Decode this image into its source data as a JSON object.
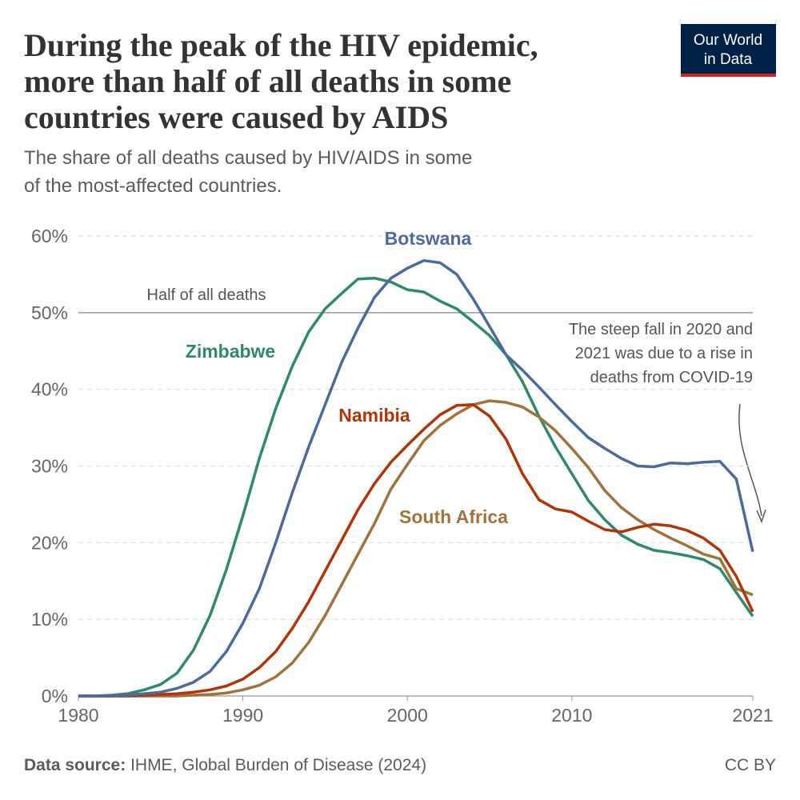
{
  "chart_data": {
    "type": "line",
    "title": [
      "During the peak of the HIV epidemic,",
      "more than half of all deaths in some",
      "countries were caused by AIDS"
    ],
    "subtitle": [
      "The share of all deaths caused by HIV/AIDS in some",
      "of the most-affected countries."
    ],
    "x": [
      1980,
      1981,
      1982,
      1983,
      1984,
      1985,
      1986,
      1987,
      1988,
      1989,
      1990,
      1991,
      1992,
      1993,
      1994,
      1995,
      1996,
      1997,
      1998,
      1999,
      2000,
      2001,
      2002,
      2003,
      2004,
      2005,
      2006,
      2007,
      2008,
      2009,
      2010,
      2011,
      2012,
      2013,
      2014,
      2015,
      2016,
      2017,
      2018,
      2019,
      2020,
      2021
    ],
    "xlim": [
      1980,
      2021
    ],
    "xticks": [
      1980,
      1990,
      2000,
      2010,
      2021
    ],
    "ylim": [
      0,
      60
    ],
    "yticks": [
      {
        "value": 0,
        "label": "0%"
      },
      {
        "value": 10,
        "label": "10%"
      },
      {
        "value": 20,
        "label": "20%"
      },
      {
        "value": 30,
        "label": "30%"
      },
      {
        "value": 40,
        "label": "40%"
      },
      {
        "value": 50,
        "label": "50%"
      },
      {
        "value": 60,
        "label": "60%"
      }
    ],
    "grid": true,
    "series": [
      {
        "name": "Botswana",
        "color": "#4c6a9c",
        "values": [
          0,
          0,
          0,
          0.1,
          0.3,
          0.5,
          1,
          1.8,
          3.2,
          5.8,
          9.5,
          14,
          20,
          26.5,
          32.5,
          38,
          43.5,
          48,
          52,
          54.5,
          55.8,
          56.8,
          56.5,
          55,
          51.8,
          48.2,
          44.5,
          42.5,
          40.3,
          38,
          35.8,
          33.7,
          32.3,
          31,
          30,
          29.9,
          30.4,
          30.3,
          30.5,
          30.6,
          28.3,
          18.8
        ]
      },
      {
        "name": "Zimbabwe",
        "color": "#2f8a6c",
        "values": [
          0,
          0,
          0.1,
          0.3,
          0.8,
          1.5,
          3,
          6,
          10.5,
          16.5,
          23.5,
          31,
          37.5,
          43,
          47.5,
          50.5,
          52.5,
          54.4,
          54.5,
          54,
          53,
          52.7,
          51.5,
          50.5,
          48.8,
          47,
          44.5,
          41,
          36.5,
          32.5,
          29,
          25.5,
          23,
          21,
          19.8,
          19,
          18.7,
          18.3,
          17.8,
          16.6,
          13.5,
          10.4
        ]
      },
      {
        "name": "Namibia",
        "color": "#b13507",
        "values": [
          0,
          0,
          0,
          0,
          0.1,
          0.2,
          0.3,
          0.5,
          0.8,
          1.3,
          2.2,
          3.7,
          5.8,
          8.8,
          12.3,
          16.3,
          20.3,
          24.3,
          27.7,
          30.5,
          32.7,
          34.8,
          36.7,
          37.9,
          38,
          36.5,
          33.5,
          29,
          25.6,
          24.4,
          24,
          22.8,
          21.7,
          21.4,
          22,
          22.4,
          22.2,
          21.6,
          20.6,
          19,
          15.6,
          11
        ]
      },
      {
        "name": "South Africa",
        "color": "#a2723d",
        "values": [
          0,
          0,
          0,
          0,
          0,
          0,
          0,
          0.1,
          0.2,
          0.4,
          0.8,
          1.4,
          2.5,
          4.3,
          7,
          10.5,
          14.5,
          18.5,
          22.5,
          27,
          30.2,
          33.3,
          35.3,
          36.8,
          38,
          38.5,
          38.3,
          37.7,
          36.4,
          34.6,
          32.3,
          29.8,
          26.8,
          24.6,
          23,
          21.7,
          20.6,
          19.6,
          18.5,
          17.9,
          14,
          13.2
        ]
      }
    ],
    "reference_line": {
      "value": 50,
      "label": "Half of all deaths"
    },
    "annotation": [
      "The steep fall in 2020 and",
      "2021 was due to a rise in",
      "deaths from COVID-19"
    ],
    "source_label": "Data source:",
    "source": "IHME, Global Burden of Disease (2024)",
    "license": "CC BY",
    "logo": [
      "Our World",
      "in Data"
    ]
  }
}
